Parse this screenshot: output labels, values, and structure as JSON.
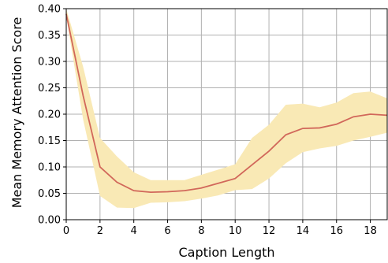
{
  "chart_data": {
    "type": "line",
    "xlabel": "Caption Length",
    "ylabel": "Mean Memory Attention Score",
    "xlim": [
      0,
      19
    ],
    "ylim": [
      0,
      0.4
    ],
    "xticks": [
      0,
      2,
      4,
      6,
      8,
      10,
      12,
      14,
      16,
      18
    ],
    "yticks": [
      0.0,
      0.05,
      0.1,
      0.15,
      0.2,
      0.25,
      0.3,
      0.35,
      0.4
    ],
    "ytick_labels": [
      "0.00",
      "0.05",
      "0.10",
      "0.15",
      "0.20",
      "0.25",
      "0.30",
      "0.35",
      "0.40"
    ],
    "grid": true,
    "x": [
      0,
      1,
      2,
      3,
      4,
      5,
      6,
      7,
      8,
      9,
      10,
      11,
      12,
      13,
      14,
      15,
      16,
      17,
      18,
      19
    ],
    "series": [
      {
        "values": [
          0.39,
          0.235,
          0.1,
          0.071,
          0.055,
          0.052,
          0.053,
          0.055,
          0.06,
          0.069,
          0.078,
          0.104,
          0.13,
          0.161,
          0.173,
          0.174,
          0.181,
          0.195,
          0.2,
          0.198
        ],
        "lower": [
          0.385,
          0.19,
          0.045,
          0.023,
          0.022,
          0.032,
          0.033,
          0.035,
          0.04,
          0.046,
          0.056,
          0.058,
          0.078,
          0.107,
          0.128,
          0.135,
          0.14,
          0.15,
          0.157,
          0.165
        ],
        "upper": [
          0.4,
          0.29,
          0.155,
          0.12,
          0.09,
          0.075,
          0.075,
          0.075,
          0.085,
          0.095,
          0.105,
          0.155,
          0.18,
          0.218,
          0.22,
          0.213,
          0.222,
          0.24,
          0.243,
          0.23
        ],
        "line_color": "#d1675a",
        "band_color": "#f9e9b5"
      }
    ]
  }
}
